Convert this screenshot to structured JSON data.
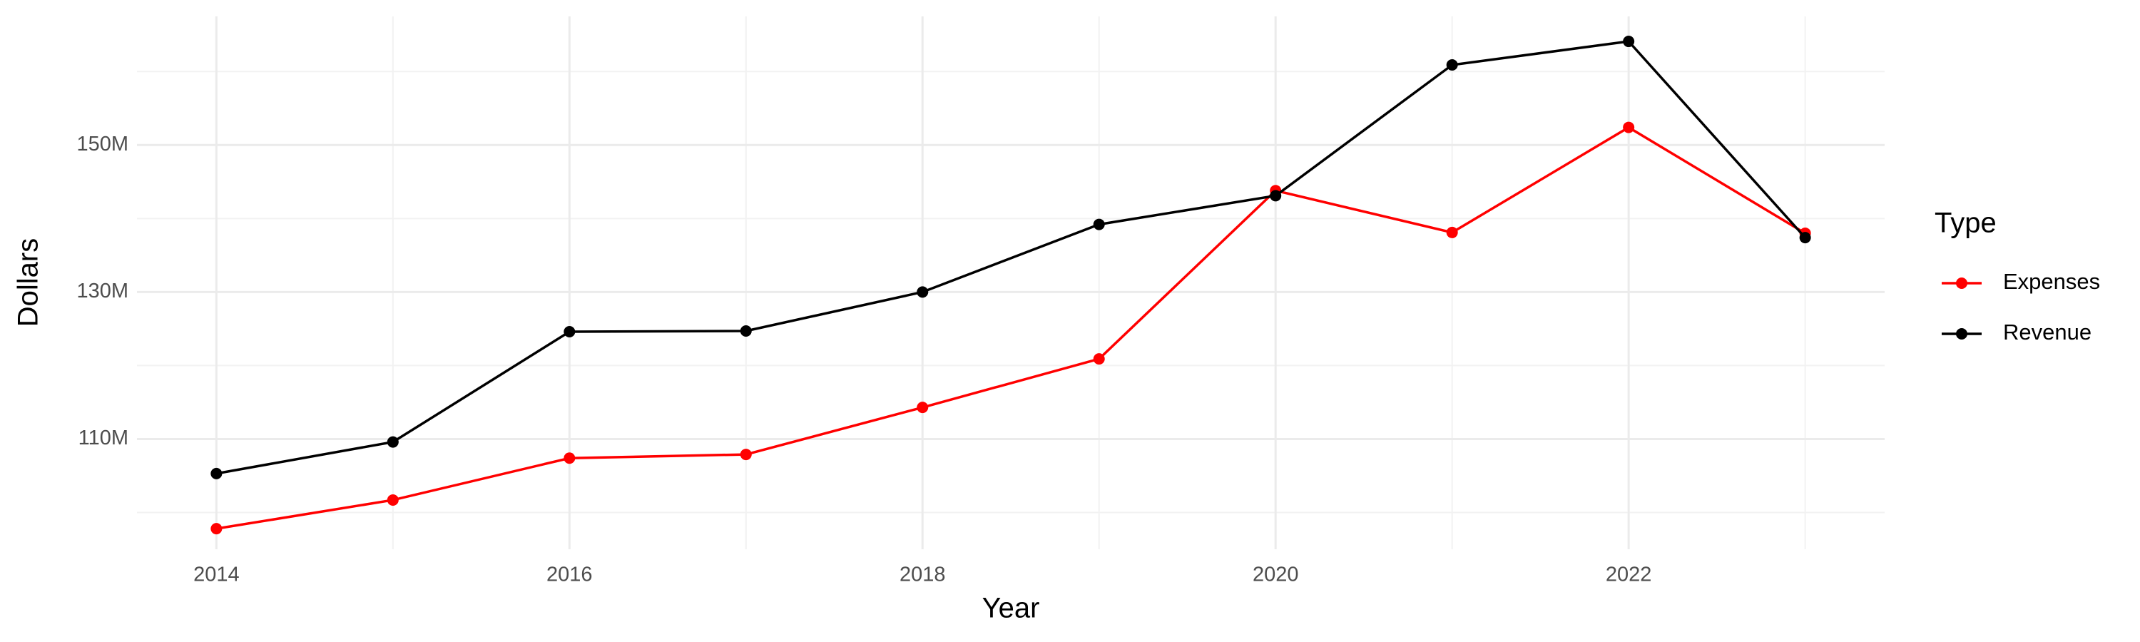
{
  "chart_data": {
    "type": "line",
    "x_label": "Year",
    "y_label": "Dollars",
    "legend_title": "Type",
    "x": [
      2014,
      2015,
      2016,
      2017,
      2018,
      2019,
      2020,
      2021,
      2022,
      2023
    ],
    "series": [
      {
        "name": "Expenses",
        "color": "#ff0000",
        "values": [
          97800000,
          101700000,
          107400000,
          107900000,
          114300000,
          120900000,
          143800000,
          138100000,
          152400000,
          138000000
        ]
      },
      {
        "name": "Revenue",
        "color": "#000000",
        "values": [
          105300000,
          109600000,
          124600000,
          124700000,
          130000000,
          139200000,
          143100000,
          160900000,
          164100000,
          137400000
        ]
      }
    ],
    "xlim": [
      2013.55,
      2023.45
    ],
    "xticks": [
      2014,
      2016,
      2018,
      2020,
      2022
    ],
    "ylim": [
      95000000,
      167500000
    ],
    "yticks": [
      {
        "value": 110000000,
        "label": "110M"
      },
      {
        "value": 130000000,
        "label": "130M"
      },
      {
        "value": 150000000,
        "label": "150M"
      }
    ],
    "grid": true,
    "legend": "right"
  }
}
